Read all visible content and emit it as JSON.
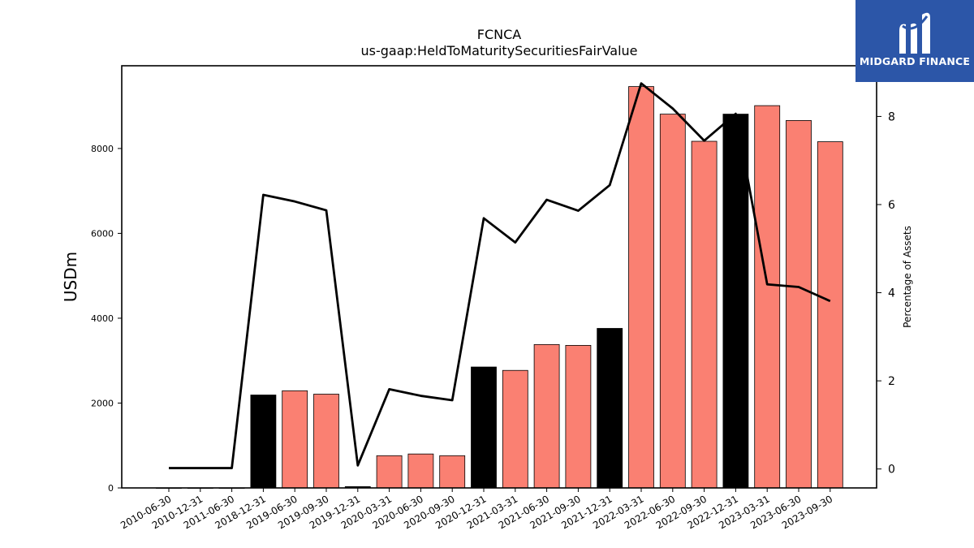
{
  "chart_data": {
    "type": "bar+line",
    "title": "FCNCA",
    "subtitle": "us-gaap:HeldToMaturitySecuritiesFairValue",
    "ylabel": "USDm",
    "y2label": "Percentage of Assets",
    "categories": [
      "2010-06-30",
      "2010-12-31",
      "2011-06-30",
      "2018-12-31",
      "2019-06-30",
      "2019-09-30",
      "2019-12-31",
      "2020-03-31",
      "2020-06-30",
      "2020-09-30",
      "2020-12-31",
      "2021-03-31",
      "2021-06-30",
      "2021-09-30",
      "2021-12-31",
      "2022-03-31",
      "2022-06-30",
      "2022-09-30",
      "2022-12-31",
      "2023-03-31",
      "2023-06-30",
      "2023-09-30"
    ],
    "bar_values": [
      0,
      0,
      0,
      2190,
      2290,
      2210,
      30,
      760,
      800,
      760,
      2850,
      2770,
      3380,
      3360,
      3760,
      9460,
      8810,
      8170,
      8810,
      9010,
      8660,
      8160
    ],
    "bar_colors": [
      "#fa8072",
      "#fa8072",
      "#fa8072",
      "#000000",
      "#fa8072",
      "#fa8072",
      "#000000",
      "#fa8072",
      "#fa8072",
      "#fa8072",
      "#000000",
      "#fa8072",
      "#fa8072",
      "#fa8072",
      "#000000",
      "#fa8072",
      "#fa8072",
      "#fa8072",
      "#000000",
      "#fa8072",
      "#fa8072",
      "#fa8072"
    ],
    "line_values": [
      0.02,
      0.02,
      0.02,
      6.22,
      6.07,
      5.87,
      0.08,
      1.81,
      1.66,
      1.56,
      5.69,
      5.14,
      6.11,
      5.86,
      6.44,
      8.75,
      8.18,
      7.45,
      8.06,
      4.19,
      4.13,
      3.81
    ],
    "line_color": "#000000",
    "ylim": [
      0,
      9950
    ],
    "y2lim": [
      -0.43,
      9.15
    ],
    "yticks": [
      0,
      2000,
      4000,
      6000,
      8000
    ],
    "y2ticks": [
      0,
      2,
      4,
      6,
      8
    ]
  },
  "logo": {
    "text": "MIDGARD FINANCE",
    "color": "#2c56a8"
  }
}
